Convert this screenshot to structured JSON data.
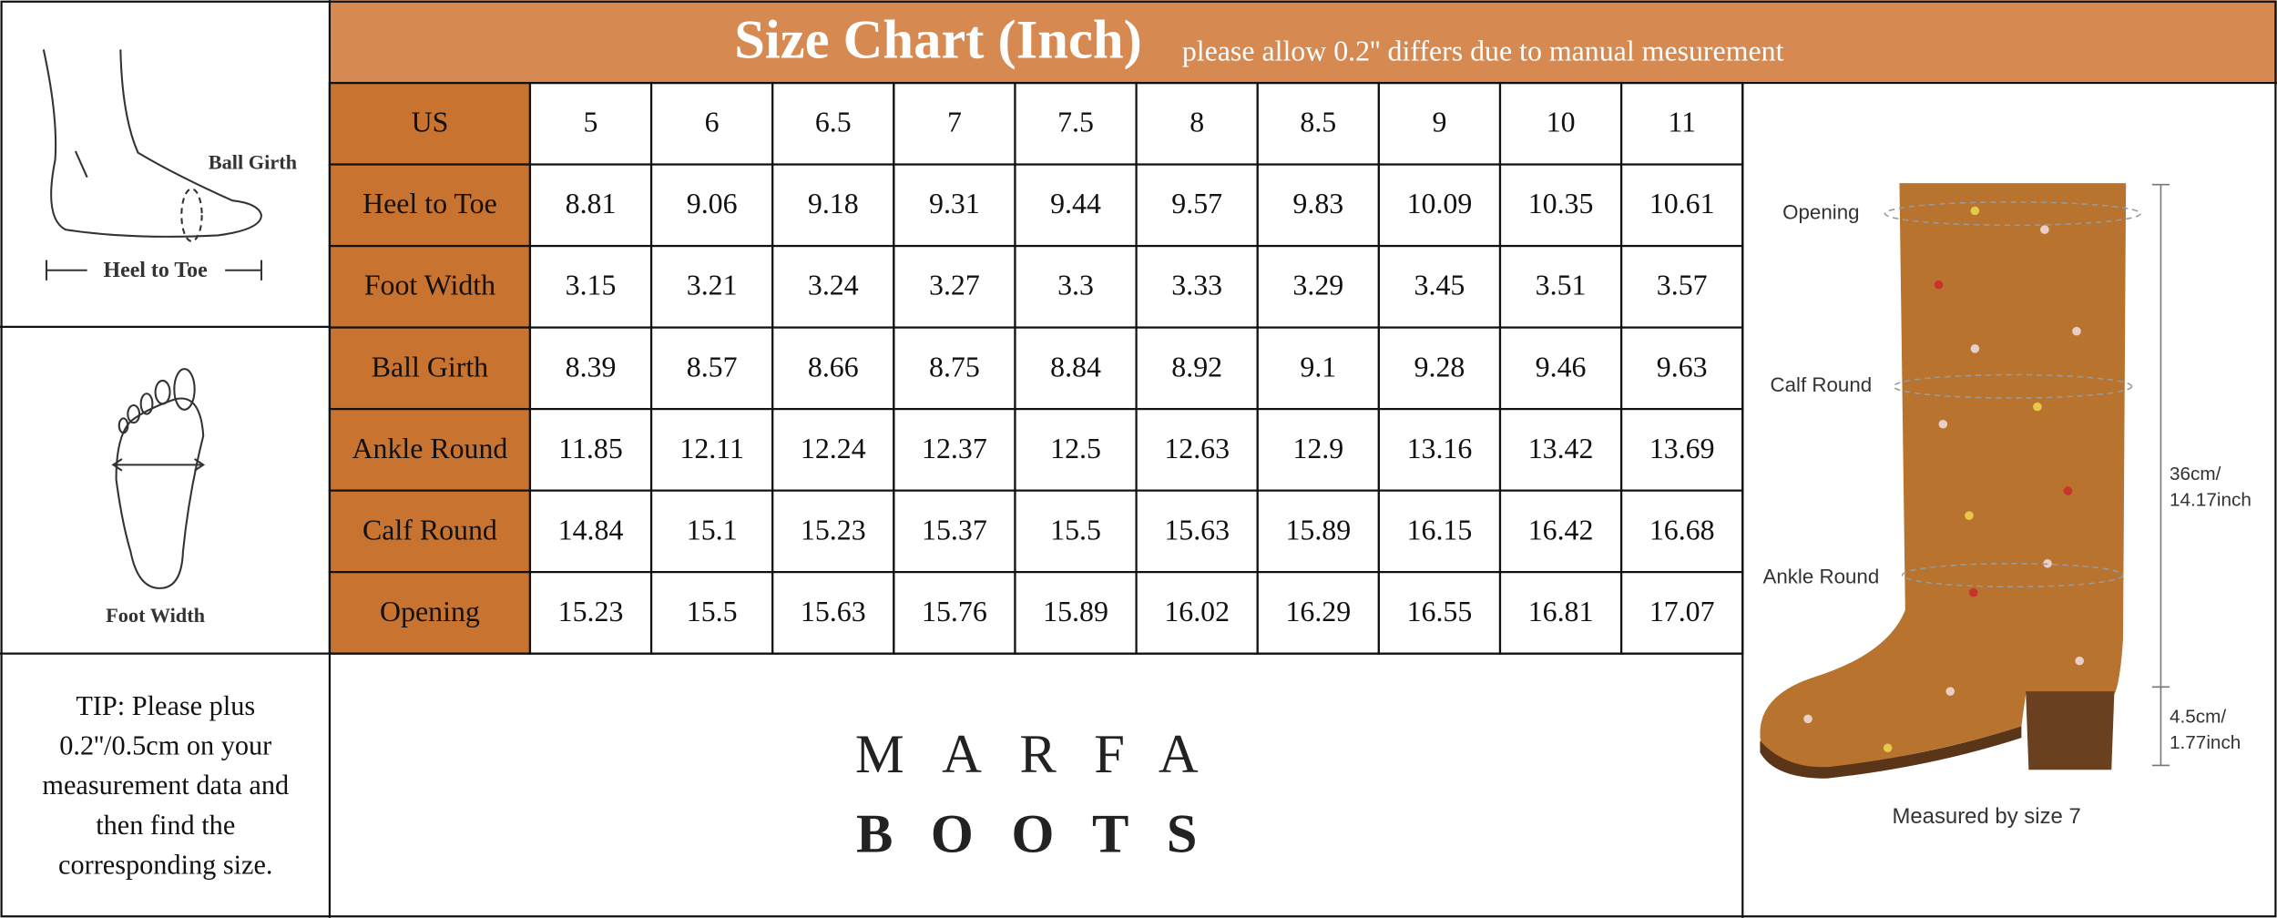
{
  "header": {
    "title": "Size Chart (Inch)",
    "subtitle": "please allow 0.2'' differs due to manual mesurement"
  },
  "table": {
    "rows": [
      [
        "US",
        5,
        6,
        6.5,
        7,
        7.5,
        8,
        8.5,
        9,
        10,
        11
      ],
      [
        "Heel to Toe",
        8.81,
        9.06,
        9.18,
        9.31,
        9.44,
        9.57,
        9.83,
        10.09,
        10.35,
        10.61
      ],
      [
        "Foot Width",
        3.15,
        3.21,
        3.24,
        3.27,
        3.3,
        3.33,
        3.29,
        3.45,
        3.51,
        3.57
      ],
      [
        "Ball Girth",
        8.39,
        8.57,
        8.66,
        8.75,
        8.84,
        8.92,
        9.1,
        9.28,
        9.46,
        9.63
      ],
      [
        "Ankle Round",
        11.85,
        12.11,
        12.24,
        12.37,
        12.5,
        12.63,
        12.9,
        13.16,
        13.42,
        13.69
      ],
      [
        "Calf Round",
        14.84,
        15.1,
        15.23,
        15.37,
        15.5,
        15.63,
        15.89,
        16.15,
        16.42,
        16.68
      ],
      [
        "Opening",
        15.23,
        15.5,
        15.63,
        15.76,
        15.89,
        16.02,
        16.29,
        16.55,
        16.81,
        17.07
      ]
    ]
  },
  "diagrams": {
    "ball_girth": "Ball Girth",
    "heel_to_toe": "Heel to Toe",
    "foot_width": "Foot Width"
  },
  "tip": [
    "TIP: Please plus",
    "0.2''/0.5cm on your",
    "measurement data and",
    "then find the",
    "corresponding size."
  ],
  "logo": [
    "MARFA",
    "BOOTS"
  ],
  "boot": {
    "opening": "Opening",
    "calf_round": "Calf Round",
    "ankle_round": "Ankle Round",
    "height": [
      "36cm/",
      "14.17inch"
    ],
    "heel": [
      "4.5cm/",
      "1.77inch"
    ],
    "caption": "Measured by size 7"
  }
}
